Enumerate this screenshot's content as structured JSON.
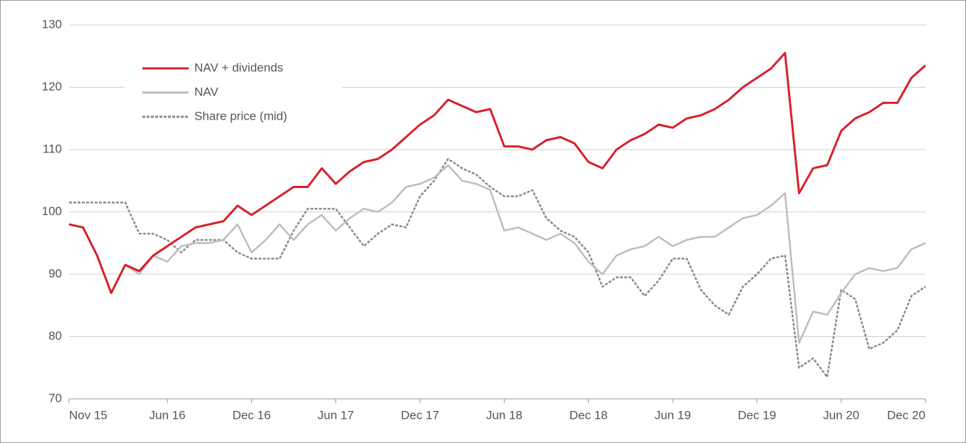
{
  "chart_data": {
    "type": "line",
    "categories": [
      "Nov 15",
      null,
      null,
      null,
      null,
      null,
      null,
      "Jun 16",
      null,
      null,
      null,
      null,
      null,
      "Dec 16",
      null,
      null,
      null,
      null,
      null,
      "Jun 17",
      null,
      null,
      null,
      null,
      null,
      "Dec 17",
      null,
      null,
      null,
      null,
      null,
      "Jun 18",
      null,
      null,
      null,
      null,
      null,
      "Dec 18",
      null,
      null,
      null,
      null,
      null,
      "Jun 19",
      null,
      null,
      null,
      null,
      null,
      "Dec 19",
      null,
      null,
      null,
      null,
      null,
      "Jun 20",
      null,
      null,
      null,
      null,
      null,
      "Dec 20"
    ],
    "series": [
      {
        "name": "NAV + dividends",
        "color": "#d7202c",
        "line_style": "solid",
        "values": [
          98,
          97.5,
          93,
          87,
          91.5,
          90.5,
          93,
          94.5,
          96,
          97.5,
          98,
          98.5,
          101,
          99.5,
          101,
          102.5,
          104,
          104,
          107,
          104.5,
          106.5,
          108,
          108.5,
          110,
          112,
          114,
          115.5,
          118,
          117,
          116,
          116.5,
          110.5,
          110.5,
          110,
          111.5,
          112,
          111,
          108,
          107,
          110,
          111.5,
          112.5,
          114,
          113.5,
          115,
          115.5,
          116.5,
          118,
          120,
          121.5,
          123,
          125.5,
          103,
          107,
          107.5,
          113,
          115,
          116,
          117.5,
          117.5,
          121.5,
          123.5
        ]
      },
      {
        "name": "NAV",
        "color": "#bdbdbd",
        "line_style": "solid",
        "values": [
          98,
          97.5,
          93,
          87,
          91.5,
          90,
          93,
          92,
          94.5,
          95,
          95,
          95.5,
          98,
          93.5,
          95.5,
          98,
          95.5,
          98,
          99.5,
          97,
          99,
          100.5,
          100,
          101.5,
          104,
          104.5,
          105.5,
          107.5,
          105,
          104.5,
          103.5,
          97,
          97.5,
          96.5,
          95.5,
          96.5,
          95,
          92,
          90,
          93,
          94,
          94.5,
          96,
          94.5,
          95.5,
          96,
          96,
          97.5,
          99,
          99.5,
          101,
          103,
          79,
          84,
          83.5,
          87,
          90,
          91,
          90.5,
          91,
          94,
          95
        ]
      },
      {
        "name": "Share price (mid)",
        "color": "#8a8a8a",
        "line_style": "dashed",
        "values": [
          101.5,
          101.5,
          101.5,
          101.5,
          101.5,
          96.5,
          96.5,
          95.5,
          93.5,
          95.5,
          95.5,
          95.5,
          93.5,
          92.5,
          92.5,
          92.5,
          97,
          100.5,
          100.5,
          100.5,
          97.5,
          94.5,
          96.5,
          98,
          97.5,
          102.5,
          105,
          108.5,
          107,
          106,
          104,
          102.5,
          102.5,
          103.5,
          99,
          97,
          96,
          93.5,
          88,
          89.5,
          89.5,
          86.5,
          89,
          92.5,
          92.5,
          87.5,
          85,
          83.5,
          88,
          90,
          92.5,
          93,
          75,
          76.5,
          73.5,
          87.5,
          86,
          78,
          79,
          81,
          86.5,
          88
        ]
      }
    ],
    "ylim": [
      70,
      130
    ],
    "yticks": [
      70,
      80,
      90,
      100,
      110,
      120,
      130
    ],
    "grid": true,
    "legend": "upper left"
  }
}
